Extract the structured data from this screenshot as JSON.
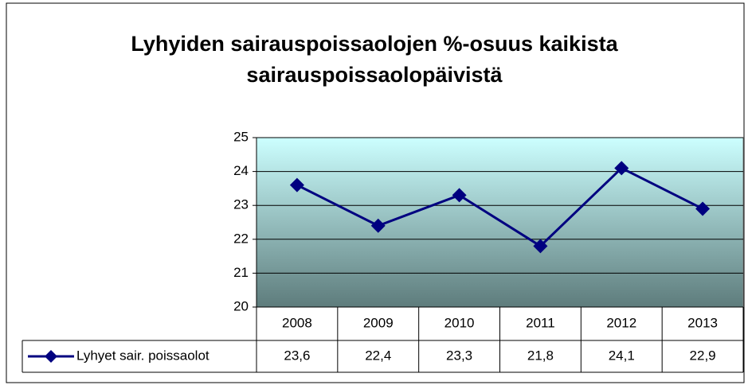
{
  "chart_data": {
    "type": "line",
    "title": "Lyhyiden sairauspoissaolojen %-osuus kaikista sairauspoissaolopäivistä",
    "categories": [
      "2008",
      "2009",
      "2010",
      "2011",
      "2012",
      "2013"
    ],
    "series": [
      {
        "name": "Lyhyet sair. poissaolot",
        "color": "#000080",
        "values": [
          23.6,
          22.4,
          23.3,
          21.8,
          24.1,
          22.9
        ],
        "value_labels": [
          "23,6",
          "22,4",
          "23,3",
          "21,8",
          "24,1",
          "22,9"
        ]
      }
    ],
    "ylim": [
      20,
      25
    ],
    "yticks": [
      20,
      21,
      22,
      23,
      24,
      25
    ],
    "grid": true
  }
}
